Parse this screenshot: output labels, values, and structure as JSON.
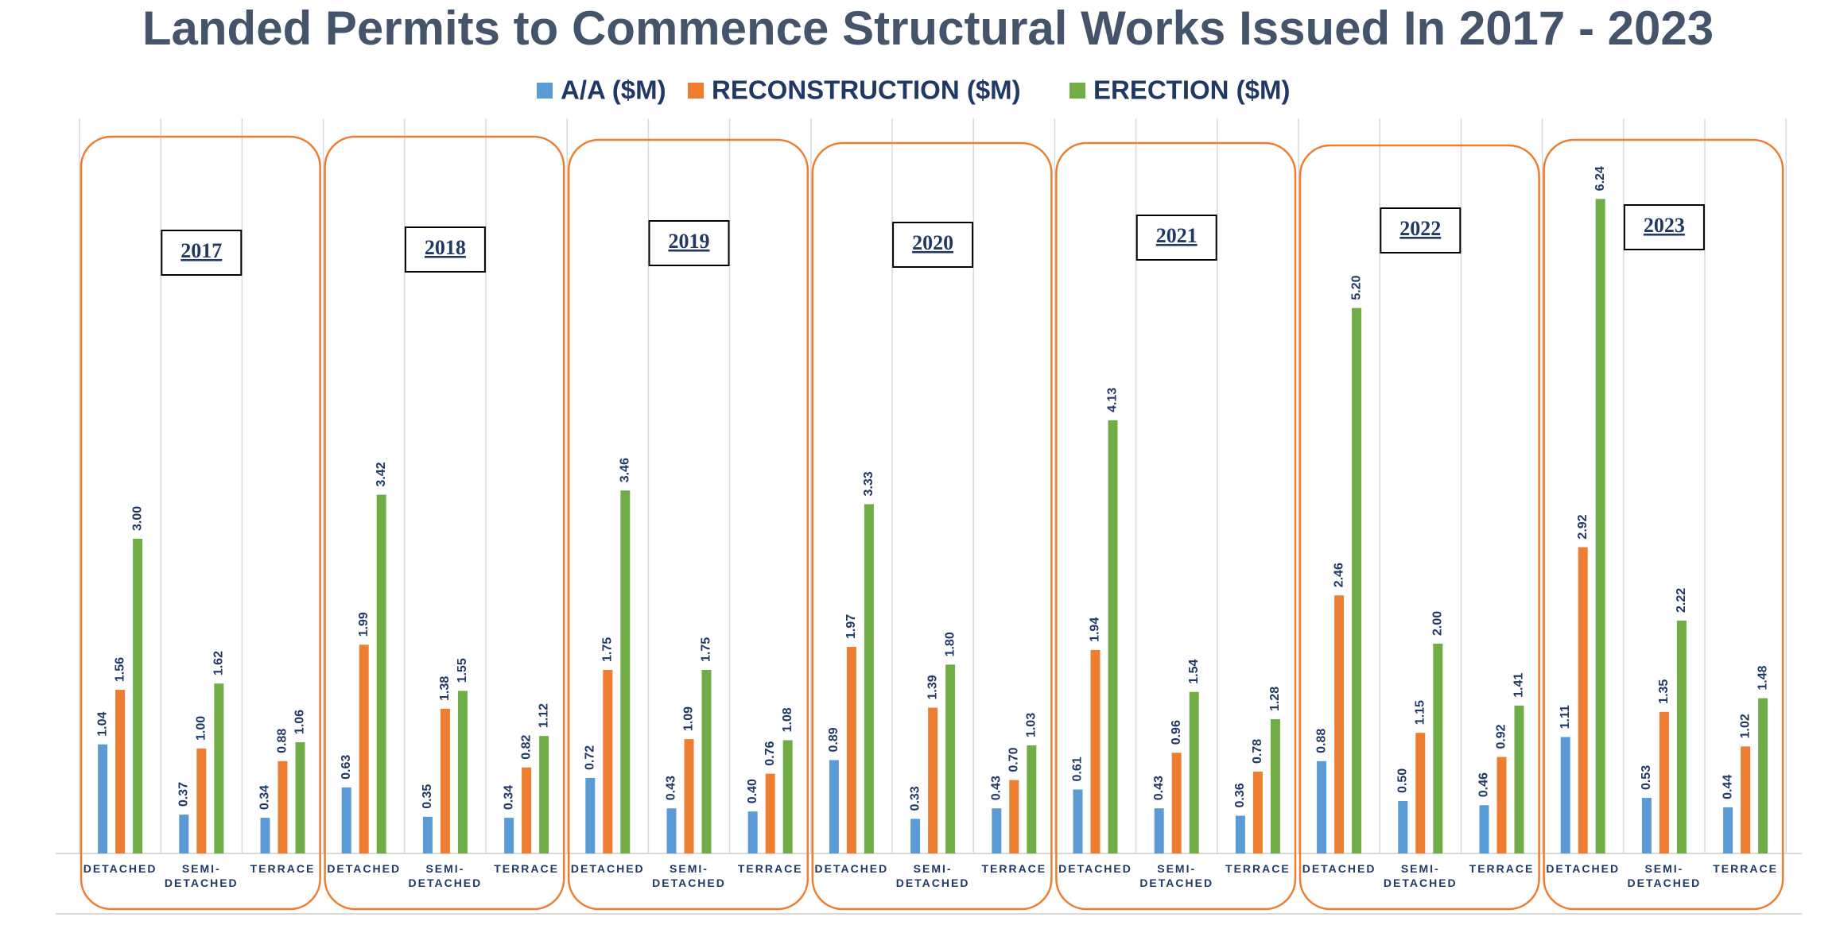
{
  "chart_data": {
    "type": "bar",
    "title": "Landed Permits to Commence Structural Works Issued In 2017 - 2023",
    "groups": [
      "2017",
      "2018",
      "2019",
      "2020",
      "2021",
      "2022",
      "2023"
    ],
    "categories": [
      "DETACHED",
      "SEMI-DETACHED",
      "TERRACE",
      "DETACHED",
      "SEMI-DETACHED",
      "TERRACE",
      "DETACHED",
      "SEMI-DETACHED",
      "TERRACE",
      "DETACHED",
      "SEMI-DETACHED",
      "TERRACE",
      "DETACHED",
      "SEMI-DETACHED",
      "TERRACE",
      "DETACHED",
      "SEMI-DETACHED",
      "TERRACE",
      "DETACHED",
      "SEMI-DETACHED",
      "TERRACE"
    ],
    "series": [
      {
        "name": "A/A ($M)",
        "color": "#5b9bd5",
        "values": [
          1.04,
          0.37,
          0.34,
          0.63,
          0.35,
          0.34,
          0.72,
          0.43,
          0.4,
          0.89,
          0.33,
          0.43,
          0.61,
          0.43,
          0.36,
          0.88,
          0.5,
          0.46,
          1.11,
          0.53,
          0.44
        ],
        "value_labels": [
          "1.04",
          "0.37",
          "0.34",
          "0.63",
          "0.35",
          "0.34",
          "0.72",
          "0.43",
          "0.40",
          "0.89",
          "0.33",
          "0.43",
          "0.61",
          "0.43",
          "0.36",
          "0.88",
          "0.50",
          "0.46",
          "1.11",
          "0.53",
          "0.44"
        ]
      },
      {
        "name": "RECONSTRUCTION ($M)",
        "color": "#ed7d31",
        "values": [
          1.56,
          1.0,
          0.88,
          1.99,
          1.38,
          0.82,
          1.75,
          1.09,
          0.76,
          1.97,
          1.39,
          0.7,
          1.94,
          0.96,
          0.78,
          2.46,
          1.15,
          0.92,
          2.92,
          1.35,
          1.02
        ],
        "value_labels": [
          "1.56",
          "1.00",
          "0.88",
          "1.99",
          "1.38",
          "0.82",
          "1.75",
          "1.09",
          "0.76",
          "1.97",
          "1.39",
          "0.70",
          "1.94",
          "0.96",
          "0.78",
          "2.46",
          "1.15",
          "0.92",
          "2.92",
          "1.35",
          "1.02"
        ]
      },
      {
        "name": "ERECTION ($M)",
        "color": "#70ad47",
        "values": [
          3.0,
          1.62,
          1.06,
          3.42,
          1.55,
          1.12,
          3.46,
          1.75,
          1.08,
          3.33,
          1.8,
          1.03,
          4.13,
          1.54,
          1.28,
          5.2,
          2.0,
          1.41,
          6.24,
          2.22,
          1.48
        ],
        "value_labels": [
          "3.00",
          "1.62",
          "1.06",
          "3.42",
          "1.55",
          "1.12",
          "3.46",
          "1.75",
          "1.08",
          "3.33",
          "1.80",
          "1.03",
          "4.13",
          "1.54",
          "1.28",
          "5.20",
          "2.00",
          "1.41",
          "6.24",
          "2.22",
          "1.48"
        ]
      }
    ],
    "group_box_color": "#ed7d31",
    "grid": true
  }
}
